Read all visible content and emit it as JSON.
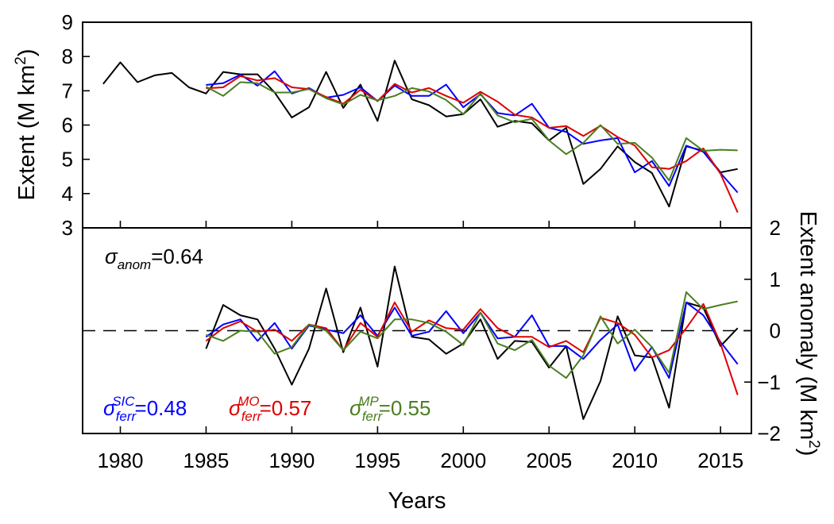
{
  "chart_data": [
    {
      "type": "line",
      "panel": "top",
      "ylabel": "Extent (M km",
      "ylabel_sup": "2",
      "ylabel_end": ")",
      "ylim": [
        3,
        9
      ],
      "xlim": [
        1977.8,
        2016.8
      ],
      "yticks": [
        3,
        4,
        5,
        6,
        7,
        8,
        9
      ],
      "grid": false,
      "series": [
        {
          "color": "#000000",
          "x": [
            1979,
            1980,
            1981,
            1982,
            1983,
            1984,
            1985,
            1986,
            1987,
            1988,
            1989,
            1990,
            1991,
            1992,
            1993,
            1994,
            1995,
            1996,
            1997,
            1998,
            1999,
            2000,
            2001,
            2002,
            2003,
            2004,
            2005,
            2006,
            2007,
            2008,
            2009,
            2010,
            2011,
            2012,
            2013,
            2014,
            2015,
            2016
          ],
          "values": [
            7.2,
            7.83,
            7.25,
            7.45,
            7.52,
            7.1,
            6.92,
            7.55,
            7.48,
            7.48,
            6.95,
            6.22,
            6.52,
            7.55,
            6.5,
            7.18,
            6.12,
            7.88,
            6.75,
            6.58,
            6.25,
            6.32,
            6.75,
            5.95,
            6.12,
            6.05,
            5.55,
            5.92,
            4.28,
            4.72,
            5.38,
            4.92,
            4.6,
            3.62,
            5.38,
            5.25,
            4.62,
            4.72
          ]
        },
        {
          "color": "#0000ff",
          "x": [
            1985,
            1986,
            1987,
            1988,
            1989,
            1990,
            1991,
            1992,
            1993,
            1994,
            1995,
            1996,
            1997,
            1998,
            1999,
            2000,
            2001,
            2002,
            2003,
            2004,
            2005,
            2006,
            2007,
            2008,
            2009,
            2010,
            2011,
            2012,
            2013,
            2014,
            2015,
            2016
          ],
          "values": [
            7.17,
            7.22,
            7.47,
            7.15,
            7.57,
            6.92,
            7.08,
            6.8,
            6.88,
            7.1,
            6.7,
            7.15,
            6.85,
            6.85,
            7.18,
            6.52,
            6.9,
            6.35,
            6.28,
            6.62,
            5.92,
            5.8,
            5.45,
            5.55,
            5.62,
            4.62,
            4.95,
            4.22,
            5.4,
            5.22,
            4.6,
            4.03
          ]
        },
        {
          "color": "#dd0000",
          "x": [
            1985,
            1986,
            1987,
            1988,
            1989,
            1990,
            1991,
            1992,
            1993,
            1994,
            1995,
            1996,
            1997,
            1998,
            1999,
            2000,
            2001,
            2002,
            2003,
            2004,
            2005,
            2006,
            2007,
            2008,
            2009,
            2010,
            2011,
            2012,
            2013,
            2014,
            2015,
            2016
          ],
          "values": [
            7.07,
            7.1,
            7.43,
            7.3,
            7.37,
            7.1,
            7.05,
            6.82,
            6.62,
            7.03,
            6.7,
            7.2,
            6.95,
            7.08,
            6.85,
            6.65,
            6.97,
            6.68,
            6.3,
            6.22,
            5.92,
            5.97,
            5.68,
            5.98,
            5.65,
            5.4,
            4.77,
            4.72,
            4.95,
            5.32,
            4.58,
            3.45
          ]
        },
        {
          "color": "#4a7f20",
          "x": [
            1985,
            1986,
            1987,
            1988,
            1989,
            1990,
            1991,
            1992,
            1993,
            1994,
            1995,
            1996,
            1997,
            1998,
            1999,
            2000,
            2001,
            2002,
            2003,
            2004,
            2005,
            2006,
            2007,
            2008,
            2009,
            2010,
            2011,
            2012,
            2013,
            2014,
            2015,
            2016
          ],
          "values": [
            7.12,
            6.85,
            7.25,
            7.22,
            6.95,
            6.95,
            7.05,
            6.78,
            6.6,
            6.88,
            6.72,
            6.85,
            7.08,
            6.98,
            6.73,
            6.32,
            6.92,
            6.28,
            6.08,
            6.18,
            5.55,
            5.15,
            5.48,
            6.0,
            5.45,
            5.48,
            5.05,
            4.38,
            5.62,
            5.25,
            5.28,
            5.26
          ]
        }
      ]
    },
    {
      "type": "line",
      "panel": "bottom",
      "ylabel": "Extent anomaly (M km",
      "ylabel_sup": "2",
      "ylabel_end": ")",
      "ylim": [
        -2,
        2
      ],
      "yticks": [
        -2,
        -1,
        0,
        1,
        2
      ],
      "ytick_labels": [
        "−2",
        "−1",
        "0",
        "1",
        "2"
      ],
      "xlabel": "Years",
      "xticks": [
        1980,
        1985,
        1990,
        1995,
        2000,
        2005,
        2010,
        2015
      ],
      "reference_line": 0,
      "annotations": [
        {
          "sym": "σ",
          "sub": "anom",
          "sup": "",
          "value": "=0.64",
          "color": "#000000"
        },
        {
          "sym": "σ",
          "sub": "ferr",
          "sup": "SIC",
          "value": "=0.48",
          "color": "#0000ff"
        },
        {
          "sym": "σ",
          "sub": "ferr",
          "sup": "MO",
          "value": "=0.57",
          "color": "#dd0000"
        },
        {
          "sym": "σ",
          "sub": "ferr",
          "sup": "MP",
          "value": "=0.55",
          "color": "#4a7f20"
        }
      ],
      "series": [
        {
          "color": "#000000",
          "x": [
            1985,
            1986,
            1987,
            1988,
            1989,
            1990,
            1991,
            1992,
            1993,
            1994,
            1995,
            1996,
            1997,
            1998,
            1999,
            2000,
            2001,
            2002,
            2003,
            2004,
            2005,
            2006,
            2007,
            2008,
            2009,
            2010,
            2011,
            2012,
            2013,
            2014,
            2015,
            2016
          ],
          "values": [
            -0.35,
            0.5,
            0.3,
            0.22,
            -0.35,
            -1.05,
            -0.35,
            0.82,
            -0.42,
            0.45,
            -0.7,
            1.25,
            -0.12,
            -0.17,
            -0.45,
            -0.25,
            0.22,
            -0.55,
            -0.2,
            -0.22,
            -0.72,
            -0.3,
            -1.72,
            -0.98,
            0.28,
            -0.48,
            -0.52,
            -1.5,
            0.55,
            0.45,
            -0.3,
            0.05
          ]
        },
        {
          "color": "#0000ff",
          "x": [
            1985,
            1986,
            1987,
            1988,
            1989,
            1990,
            1991,
            1992,
            1993,
            1994,
            1995,
            1996,
            1997,
            1998,
            1999,
            2000,
            2001,
            2002,
            2003,
            2004,
            2005,
            2006,
            2007,
            2008,
            2009,
            2010,
            2011,
            2012,
            2013,
            2014,
            2015,
            2016
          ],
          "values": [
            -0.12,
            0.12,
            0.22,
            -0.2,
            0.15,
            -0.35,
            0.1,
            0.02,
            -0.05,
            0.3,
            -0.1,
            0.45,
            -0.1,
            -0.02,
            0.38,
            -0.05,
            0.35,
            -0.15,
            -0.12,
            0.3,
            -0.3,
            -0.3,
            -0.55,
            -0.18,
            0.12,
            -0.78,
            -0.32,
            -0.92,
            0.55,
            0.3,
            -0.22,
            -0.65
          ]
        },
        {
          "color": "#dd0000",
          "x": [
            1985,
            1986,
            1987,
            1988,
            1989,
            1990,
            1991,
            1992,
            1993,
            1994,
            1995,
            1996,
            1997,
            1998,
            1999,
            2000,
            2001,
            2002,
            2003,
            2004,
            2005,
            2006,
            2007,
            2008,
            2009,
            2010,
            2011,
            2012,
            2013,
            2014,
            2015,
            2016
          ],
          "values": [
            -0.2,
            0.05,
            0.18,
            -0.02,
            0.02,
            -0.2,
            0.12,
            0.05,
            -0.38,
            0.15,
            -0.12,
            0.55,
            -0.02,
            0.2,
            0.05,
            0.02,
            0.42,
            0.05,
            -0.12,
            -0.12,
            -0.32,
            -0.2,
            -0.42,
            0.25,
            0.15,
            -0.08,
            -0.52,
            -0.38,
            0.05,
            0.52,
            -0.25,
            -1.25
          ]
        },
        {
          "color": "#4a7f20",
          "x": [
            1985,
            1986,
            1987,
            1988,
            1989,
            1990,
            1991,
            1992,
            1993,
            1994,
            1995,
            1996,
            1997,
            1998,
            1999,
            2000,
            2001,
            2002,
            2003,
            2004,
            2005,
            2006,
            2007,
            2008,
            2009,
            2010,
            2011,
            2012,
            2013,
            2014,
            2015,
            2016
          ],
          "values": [
            -0.08,
            -0.2,
            0.0,
            -0.02,
            -0.45,
            -0.32,
            0.12,
            0.0,
            -0.38,
            -0.02,
            -0.15,
            0.22,
            0.22,
            0.15,
            -0.02,
            -0.28,
            0.35,
            -0.25,
            -0.38,
            -0.18,
            -0.68,
            -0.92,
            -0.48,
            0.28,
            -0.25,
            0.02,
            -0.32,
            -0.82,
            0.75,
            0.42,
            0.5,
            0.57
          ]
        }
      ]
    }
  ]
}
